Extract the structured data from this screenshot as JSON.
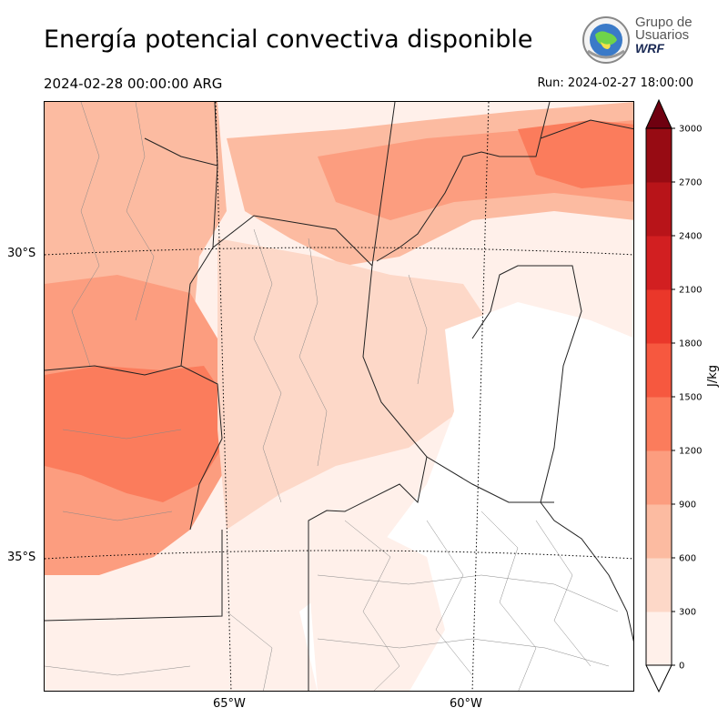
{
  "header": {
    "title": "Energía potencial convectiva disponible",
    "valid_time": "2024-02-28 00:00:00 ARG",
    "run_time": "Run: 2024-02-27 18:00:00"
  },
  "logo": {
    "line1": "Grupo de",
    "line2": "Usuarios",
    "line3": "WRF"
  },
  "map": {
    "lat_labels": [
      "30°S",
      "35°S"
    ],
    "lon_labels": [
      "65°W",
      "60°W"
    ]
  },
  "colorbar": {
    "unit": "J/kg",
    "levels": [
      0,
      300,
      600,
      900,
      1200,
      1500,
      1800,
      2100,
      2400,
      2700,
      3000
    ],
    "tick_labels": [
      "0",
      "300",
      "600",
      "900",
      "1200",
      "1500",
      "1800",
      "2100",
      "2400",
      "2700",
      "3000"
    ],
    "colors": [
      "#fff0ea",
      "#fdd8c8",
      "#fcbba1",
      "#fc9d7f",
      "#fb7c5c",
      "#f6583f",
      "#ea372a",
      "#d21f21",
      "#b81419",
      "#970b13",
      "#6f0010"
    ],
    "extend": "max"
  },
  "fields": {
    "cape_regions": [
      {
        "level": 2,
        "label": "northwest"
      },
      {
        "level": 3,
        "label": "west-central"
      },
      {
        "level": 4,
        "label": "west-core"
      },
      {
        "level": 2,
        "label": "north band"
      },
      {
        "level": 3,
        "label": "northeast band"
      },
      {
        "level": 4,
        "label": "northeast core"
      },
      {
        "level": 1,
        "label": "central"
      },
      {
        "level": 0,
        "label": "southeast"
      }
    ]
  }
}
